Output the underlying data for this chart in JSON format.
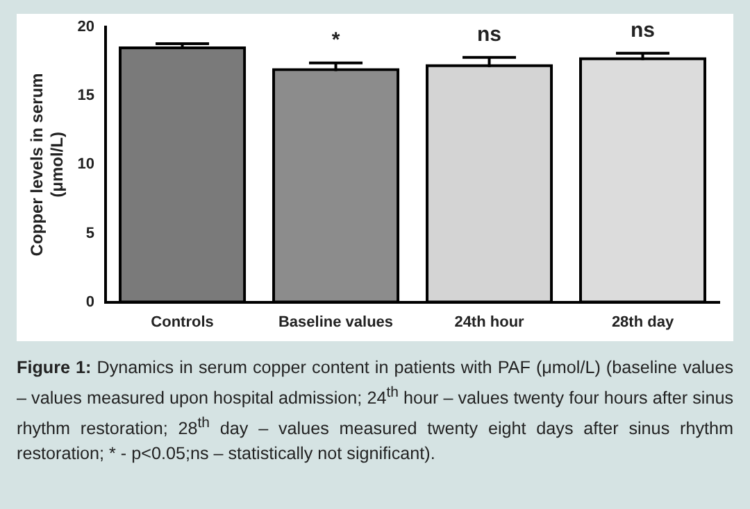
{
  "chart_data": {
    "type": "bar",
    "title": "Figure 1:",
    "ylabel": "Copper levels in serum\n(μmol/L)",
    "categories": [
      "Controls",
      "Baseline values",
      "24th hour",
      "28th day"
    ],
    "values": [
      18.4,
      16.8,
      17.1,
      17.6
    ],
    "colors": [
      "#7a7a7a",
      "#8c8c8c",
      "#d4d4d4",
      "#dcdcdc"
    ],
    "errors": [
      0.4,
      0.6,
      0.7,
      0.5
    ],
    "value_labels": [
      null,
      "*",
      "ns",
      "ns"
    ],
    "ylim": [
      0,
      20
    ],
    "yticks": [
      0,
      5,
      10,
      15,
      20
    ],
    "grid": false,
    "legend": false,
    "annotations": [
      "Dynamics in serum copper content in patients with PAF (μmol/L) (baseline values – values measured upon hospital admission; 24$^{th}$ hour – values twenty four hours after sinus rhythm restoration; 28$^{th}$ day – values measured twenty eight days after sinus rhythm restoration; * - p<0.05;ns – statistically not significant)."
    ]
  }
}
